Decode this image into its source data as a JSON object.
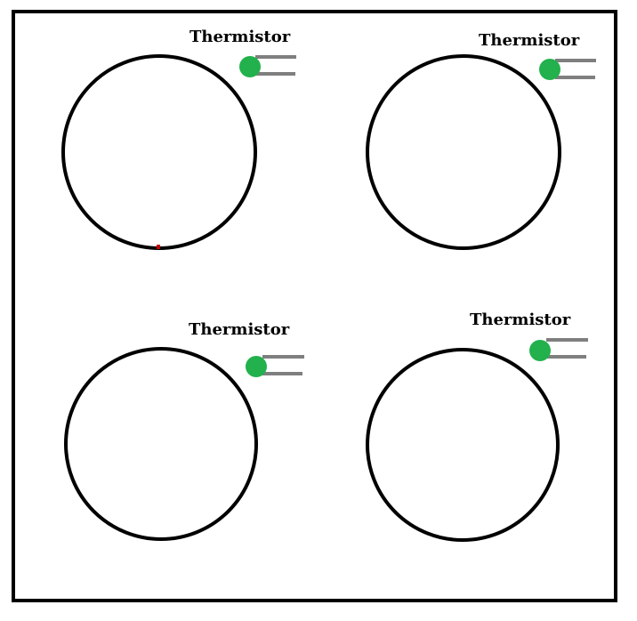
{
  "colors": {
    "border": "#000000",
    "burner_ring": "#000000",
    "thermistor_bead": "#22b14c",
    "thermistor_leads": "#7f7f7f",
    "ring_mark": "#c00000"
  },
  "burners": [
    {
      "id": "top-left",
      "label": "Thermistor"
    },
    {
      "id": "top-right",
      "label": "Thermistor"
    },
    {
      "id": "bottom-left",
      "label": "Thermistor"
    },
    {
      "id": "bottom-right",
      "label": "Thermistor"
    }
  ]
}
